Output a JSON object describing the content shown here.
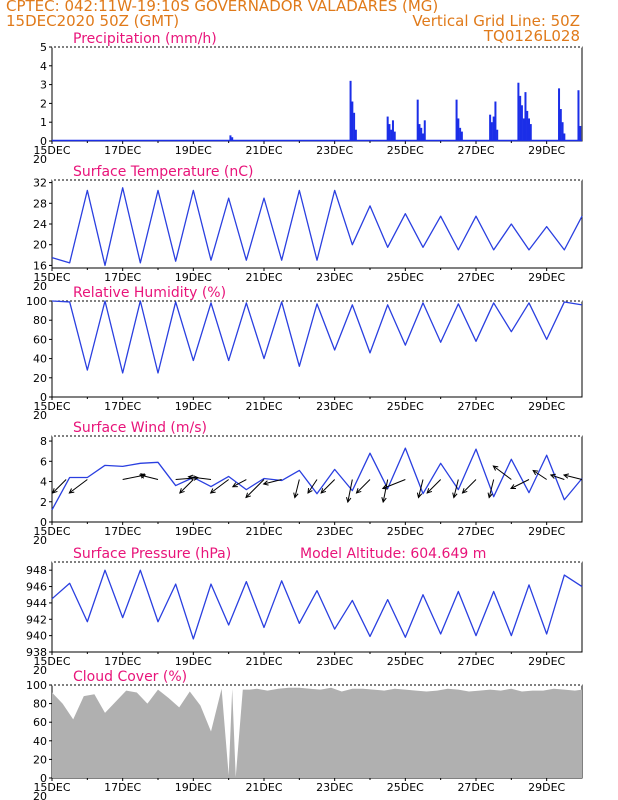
{
  "header": {
    "left_line1": "CPTEC:   042:11W-19:10S   GOVERNADOR VALADARES (MG)",
    "left_line2": "15DEC2020 50Z (GMT)",
    "right_line1": "Vertical Grid Line: 50Z",
    "right_line2": "TQ0126L028"
  },
  "x_axis": {
    "ticks": [
      "15DEC",
      "17DEC",
      "19DEC",
      "21DEC",
      "23DEC",
      "25DEC",
      "27DEC",
      "29DEC"
    ],
    "year_fragment": "20"
  },
  "colors": {
    "line": "#2a3fe0",
    "bar": "#1b2ee8",
    "cloud": "#b0b0b0",
    "title": "#e8147a",
    "header": "#e07a1a",
    "wind_vector": "#000000"
  },
  "chart_data": [
    {
      "type": "bar",
      "title": "Precipitation (mm/h)",
      "ylim": [
        0,
        5
      ],
      "yticks": [
        "0",
        "1",
        "2",
        "3",
        "4",
        "5"
      ],
      "x_range_days": [
        0,
        15
      ],
      "series": [
        {
          "x_day": [
            5.05,
            5.1,
            8.45,
            8.5,
            8.55,
            8.6,
            9.5,
            9.55,
            9.6,
            9.65,
            9.7,
            10.35,
            10.4,
            10.45,
            10.5,
            10.55,
            11.45,
            11.5,
            11.55,
            11.6,
            12.4,
            12.45,
            12.5,
            12.55,
            12.6,
            13.2,
            13.25,
            13.3,
            13.35,
            13.4,
            13.45,
            13.5,
            13.55,
            14.35,
            14.4,
            14.45,
            14.5,
            14.9,
            14.95
          ],
          "values": [
            0.3,
            0.2,
            3.2,
            2.1,
            1.5,
            0.6,
            1.3,
            0.9,
            0.6,
            1.1,
            0.5,
            2.2,
            0.9,
            0.7,
            0.4,
            1.1,
            2.2,
            1.2,
            0.7,
            0.5,
            1.4,
            1.0,
            1.3,
            2.1,
            0.6,
            3.1,
            2.4,
            1.9,
            1.2,
            2.6,
            1.6,
            1.2,
            0.9,
            2.8,
            1.7,
            1.0,
            0.4,
            2.7,
            0.8
          ]
        }
      ]
    },
    {
      "type": "line",
      "title": "Surface Temperature (nC)",
      "ylim": [
        15.5,
        32.5
      ],
      "yticks": [
        "16",
        "20",
        "24",
        "28",
        "32"
      ],
      "series": [
        {
          "x_day": [
            0.0,
            0.5,
            1.0,
            1.5,
            2.0,
            2.5,
            3.0,
            3.5,
            4.0,
            4.5,
            5.0,
            5.5,
            6.0,
            6.5,
            7.0,
            7.5,
            8.0,
            8.5,
            9.0,
            9.5,
            10.0,
            10.5,
            11.0,
            11.5,
            12.0,
            12.5,
            13.0,
            13.5,
            14.0,
            14.5,
            15.0
          ],
          "values": [
            17.5,
            16.5,
            30.5,
            16,
            31,
            16.5,
            30.5,
            16.8,
            30.5,
            17,
            29,
            17,
            29,
            17,
            30.5,
            17,
            30.5,
            20,
            27.5,
            19.5,
            26,
            19.5,
            25.5,
            19,
            25.5,
            19,
            24,
            19,
            23.5,
            19,
            25.5
          ]
        }
      ]
    },
    {
      "type": "line",
      "title": "Relative Humidity (%)",
      "ylim": [
        0,
        100
      ],
      "yticks": [
        "0",
        "20",
        "40",
        "60",
        "80",
        "100"
      ],
      "series": [
        {
          "x_day": [
            0.0,
            0.5,
            1.0,
            1.5,
            2.0,
            2.5,
            3.0,
            3.5,
            4.0,
            4.5,
            5.0,
            5.5,
            6.0,
            6.5,
            7.0,
            7.5,
            8.0,
            8.5,
            9.0,
            9.5,
            10.0,
            10.5,
            11.0,
            11.5,
            12.0,
            12.5,
            13.0,
            13.5,
            14.0,
            14.5,
            15.0
          ],
          "values": [
            100,
            99,
            28,
            100,
            25,
            100,
            25,
            99,
            38,
            98,
            38,
            98,
            40,
            99,
            32,
            97,
            49,
            96,
            46,
            96,
            54,
            98,
            57,
            97,
            58,
            98,
            68,
            98,
            60,
            99,
            96
          ]
        }
      ]
    },
    {
      "type": "line",
      "title": "Surface Wind (m/s)",
      "ylim": [
        0,
        8.5
      ],
      "yticks": [
        "0",
        "2",
        "4",
        "6",
        "8"
      ],
      "series": [
        {
          "x_day": [
            0.0,
            0.5,
            1.0,
            1.5,
            2.0,
            2.5,
            3.0,
            3.5,
            4.0,
            4.5,
            5.0,
            5.5,
            6.0,
            6.5,
            7.0,
            7.5,
            8.0,
            8.5,
            9.0,
            9.5,
            10.0,
            10.5,
            11.0,
            11.5,
            12.0,
            12.5,
            13.0,
            13.5,
            14.0,
            14.5,
            15.0
          ],
          "values": [
            1.2,
            4.4,
            4.4,
            5.6,
            5.5,
            5.8,
            5.9,
            3.6,
            4.4,
            3.5,
            4.5,
            3.2,
            4.3,
            4.1,
            5.1,
            2.8,
            5.2,
            3.1,
            6.8,
            3.3,
            7.3,
            2.8,
            5.8,
            3.2,
            7.2,
            2.5,
            6.2,
            2.9,
            6.6,
            2.2,
            4.3
          ]
        }
      ]
    },
    {
      "type": "line",
      "title": "Surface Pressure (hPa)",
      "annotation": "Model Altitude: 604.649  m",
      "ylim": [
        938,
        949
      ],
      "yticks": [
        "938",
        "940",
        "942",
        "944",
        "946",
        "948"
      ],
      "series": [
        {
          "x_day": [
            0.0,
            0.5,
            1.0,
            1.5,
            2.0,
            2.5,
            3.0,
            3.5,
            4.0,
            4.5,
            5.0,
            5.5,
            6.0,
            6.5,
            7.0,
            7.5,
            8.0,
            8.5,
            9.0,
            9.5,
            10.0,
            10.5,
            11.0,
            11.5,
            12.0,
            12.5,
            13.0,
            13.5,
            14.0,
            14.5,
            15.0
          ],
          "values": [
            944.5,
            946.4,
            941.7,
            948.0,
            942.2,
            948.0,
            941.7,
            946.3,
            939.6,
            946.3,
            941.3,
            946.6,
            941.0,
            946.7,
            941.5,
            945.5,
            940.8,
            944.3,
            939.9,
            944.4,
            939.8,
            945.0,
            940.2,
            945.4,
            940.0,
            945.4,
            940.0,
            946.2,
            940.2,
            947.4,
            946.0
          ]
        }
      ]
    },
    {
      "type": "area",
      "title": "Cloud Cover (%)",
      "ylim": [
        0,
        100
      ],
      "yticks": [
        "0",
        "20",
        "40",
        "60",
        "80",
        "100"
      ],
      "series": [
        {
          "x_day": [
            0.0,
            0.3,
            0.6,
            0.9,
            1.2,
            1.5,
            1.8,
            2.1,
            2.4,
            2.7,
            3.0,
            3.3,
            3.6,
            3.9,
            4.2,
            4.5,
            4.8,
            5.0,
            5.1,
            5.2,
            5.4,
            5.6,
            5.8,
            6.1,
            6.4,
            6.7,
            7.0,
            7.3,
            7.6,
            7.9,
            8.2,
            8.5,
            8.8,
            9.1,
            9.4,
            9.7,
            10.0,
            10.3,
            10.6,
            10.9,
            11.2,
            11.5,
            11.8,
            12.1,
            12.4,
            12.7,
            13.0,
            13.3,
            13.6,
            13.9,
            14.2,
            14.5,
            14.8,
            15.0
          ],
          "values": [
            92,
            80,
            63,
            88,
            90,
            70,
            82,
            94,
            92,
            80,
            95,
            86,
            76,
            93,
            78,
            50,
            96,
            3,
            96,
            1,
            95,
            95,
            96,
            94,
            96,
            97,
            97,
            96,
            95,
            97,
            93,
            96,
            96,
            95,
            94,
            96,
            95,
            94,
            93,
            94,
            96,
            95,
            93,
            94,
            95,
            94,
            96,
            93,
            94,
            94,
            96,
            95,
            94,
            95
          ]
        }
      ]
    }
  ],
  "wind_vectors": {
    "x_day": [
      0.4,
      1.0,
      2.0,
      3.0,
      3.5,
      4.0,
      4.5,
      5.0,
      5.5,
      6.0,
      6.5,
      7.0,
      7.5,
      8.0,
      8.5,
      9.0,
      9.5,
      10.0,
      10.5,
      11.0,
      11.5,
      12.0,
      12.5,
      13.0,
      13.5,
      14.0,
      14.5,
      15.0
    ],
    "u_ms": [
      -1.5,
      -2.0,
      2.5,
      -2.0,
      2.5,
      -1.5,
      -2.5,
      -2.0,
      -1.5,
      -2.0,
      -2.0,
      -0.5,
      -1.0,
      -1.5,
      -0.5,
      -1.5,
      -0.5,
      -2.5,
      -0.5,
      -1.5,
      -0.5,
      -1.5,
      -0.5,
      -2.0,
      -2.0,
      -1.5,
      -1.5,
      -2.0
    ],
    "v_ms": [
      -1.5,
      -1.5,
      0.5,
      0.5,
      0.2,
      -1.5,
      0.3,
      -1.5,
      -0.8,
      -2.0,
      -0.5,
      -2.0,
      -1.5,
      -1.5,
      -2.5,
      -1.5,
      -2.5,
      -1.0,
      -2.0,
      -1.5,
      -2.0,
      -1.5,
      -2.0,
      1.5,
      -1.0,
      1.0,
      0.5,
      0.5
    ]
  }
}
